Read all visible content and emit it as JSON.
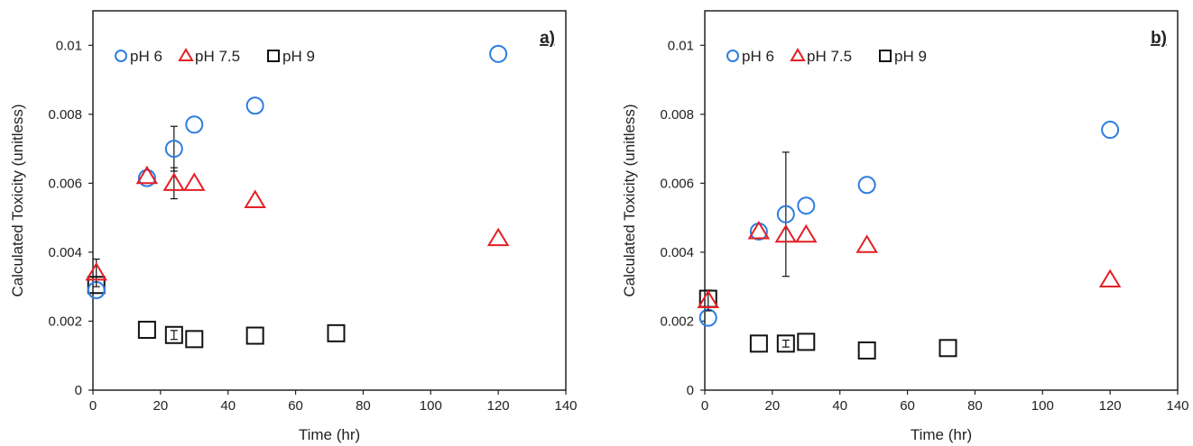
{
  "colors": {
    "pH6": "#2e7de0",
    "pH7_5": "#e41f25",
    "pH9": "#111111",
    "axis": "#222222"
  },
  "chart_data": [
    {
      "type": "scatter",
      "panel_label": "a)",
      "xlabel": "Time (hr)",
      "ylabel": "Calculated Toxicity (unitless)",
      "xlim": [
        0,
        140
      ],
      "ylim": [
        0,
        0.011
      ],
      "x_ticks": [
        0,
        20,
        40,
        60,
        80,
        100,
        120,
        140
      ],
      "y_ticks": [
        0,
        0.002,
        0.004,
        0.006,
        0.008,
        0.01
      ],
      "y_tick_labels": [
        "0",
        "0.002",
        "0.004",
        "0.006",
        "0.008",
        "0.01"
      ],
      "grid": false,
      "legend_position": "top-left",
      "series": [
        {
          "name": "pH 6",
          "marker": "circle",
          "color_key": "pH6",
          "points": [
            {
              "x": 1,
              "y": 0.0029
            },
            {
              "x": 16,
              "y": 0.00615
            },
            {
              "x": 24,
              "y": 0.007,
              "err": 0.00065
            },
            {
              "x": 30,
              "y": 0.0077
            },
            {
              "x": 48,
              "y": 0.00825
            },
            {
              "x": 120,
              "y": 0.00975
            }
          ]
        },
        {
          "name": "pH 7.5",
          "marker": "triangle",
          "color_key": "pH7_5",
          "points": [
            {
              "x": 1,
              "y": 0.0034,
              "err": 0.0004
            },
            {
              "x": 16,
              "y": 0.0062
            },
            {
              "x": 24,
              "y": 0.006,
              "err": 0.00045
            },
            {
              "x": 30,
              "y": 0.006
            },
            {
              "x": 48,
              "y": 0.0055
            },
            {
              "x": 120,
              "y": 0.0044
            }
          ]
        },
        {
          "name": "pH 9",
          "marker": "square",
          "color_key": "pH9",
          "points": [
            {
              "x": 1,
              "y": 0.00305
            },
            {
              "x": 16,
              "y": 0.00175
            },
            {
              "x": 24,
              "y": 0.0016,
              "err": 0.00013
            },
            {
              "x": 30,
              "y": 0.00148
            },
            {
              "x": 48,
              "y": 0.00158
            },
            {
              "x": 72,
              "y": 0.00165
            }
          ]
        }
      ]
    },
    {
      "type": "scatter",
      "panel_label": "b)",
      "xlabel": "Time (hr)",
      "ylabel": "Calculated Toxicity (unitless)",
      "xlim": [
        0,
        140
      ],
      "ylim": [
        0,
        0.011
      ],
      "x_ticks": [
        0,
        20,
        40,
        60,
        80,
        100,
        120,
        140
      ],
      "y_ticks": [
        0,
        0.002,
        0.004,
        0.006,
        0.008,
        0.01
      ],
      "y_tick_labels": [
        "0",
        "0.002",
        "0.004",
        "0.006",
        "0.008",
        "0.01"
      ],
      "grid": false,
      "legend_position": "top-left",
      "series": [
        {
          "name": "pH 6",
          "marker": "circle",
          "color_key": "pH6",
          "points": [
            {
              "x": 1,
              "y": 0.0021
            },
            {
              "x": 16,
              "y": 0.0046
            },
            {
              "x": 24,
              "y": 0.0051,
              "err": 0.0018
            },
            {
              "x": 30,
              "y": 0.00535
            },
            {
              "x": 48,
              "y": 0.00595
            },
            {
              "x": 120,
              "y": 0.00755
            }
          ]
        },
        {
          "name": "pH 7.5",
          "marker": "triangle",
          "color_key": "pH7_5",
          "points": [
            {
              "x": 1,
              "y": 0.0026,
              "err": 0.0003
            },
            {
              "x": 16,
              "y": 0.0046
            },
            {
              "x": 24,
              "y": 0.0045
            },
            {
              "x": 30,
              "y": 0.0045
            },
            {
              "x": 48,
              "y": 0.0042
            },
            {
              "x": 120,
              "y": 0.0032
            }
          ]
        },
        {
          "name": "pH 9",
          "marker": "square",
          "color_key": "pH9",
          "points": [
            {
              "x": 1,
              "y": 0.00265
            },
            {
              "x": 16,
              "y": 0.00135
            },
            {
              "x": 24,
              "y": 0.00135,
              "err": 0.0001
            },
            {
              "x": 30,
              "y": 0.0014
            },
            {
              "x": 48,
              "y": 0.00115
            },
            {
              "x": 72,
              "y": 0.00122
            }
          ]
        }
      ]
    }
  ]
}
